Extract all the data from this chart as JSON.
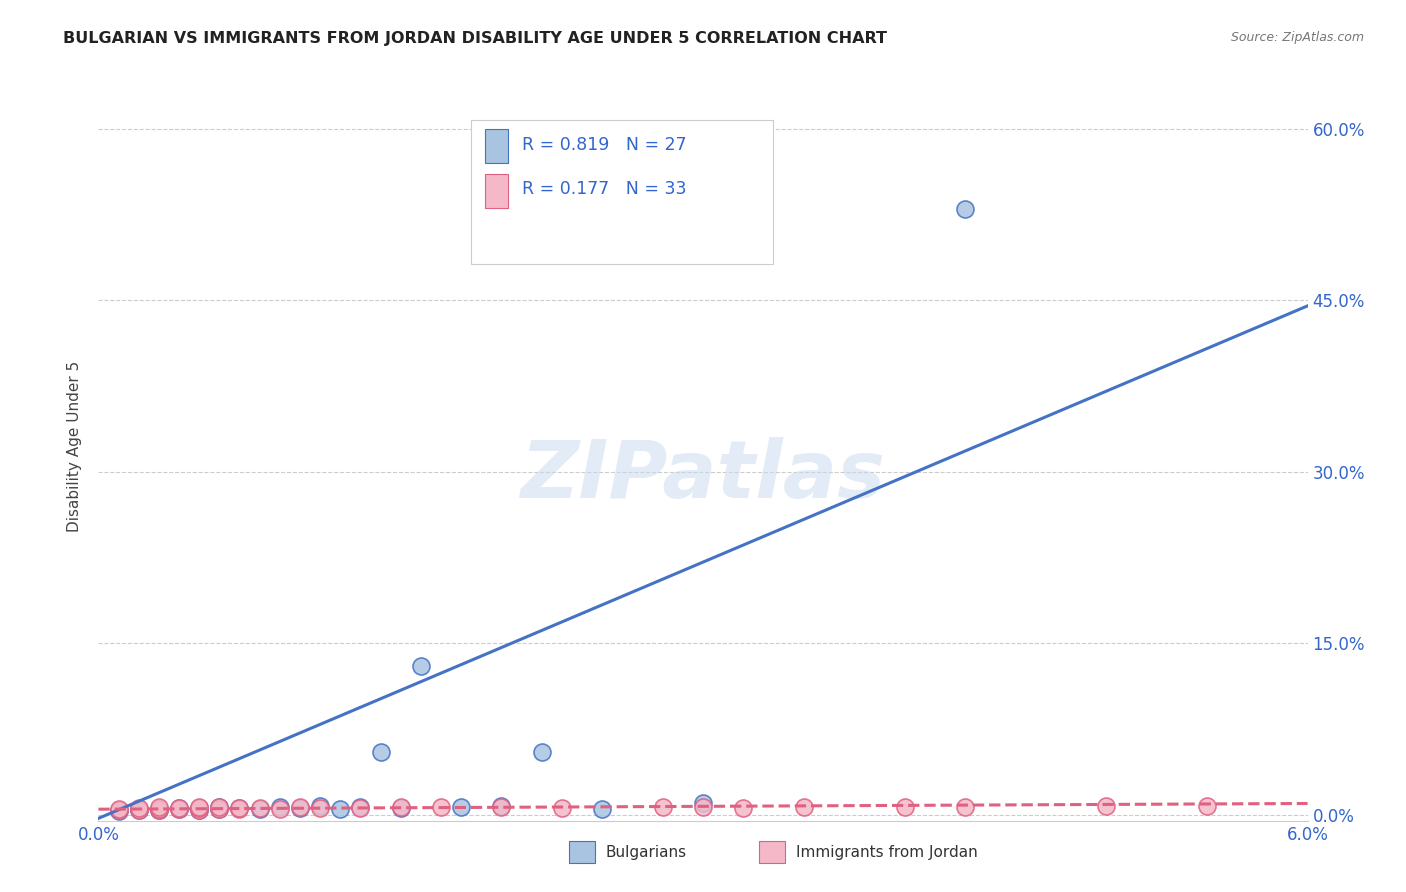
{
  "title": "BULGARIAN VS IMMIGRANTS FROM JORDAN DISABILITY AGE UNDER 5 CORRELATION CHART",
  "source": "Source: ZipAtlas.com",
  "ylabel": "Disability Age Under 5",
  "xmin": 0.0,
  "xmax": 0.06,
  "ymin": -0.005,
  "ymax": 0.65,
  "blue_color": "#a8c4e0",
  "blue_line_color": "#4472c4",
  "pink_color": "#f4b8c8",
  "pink_line_color": "#e06080",
  "blue_scatter_x": [
    0.001,
    0.002,
    0.002,
    0.003,
    0.003,
    0.004,
    0.004,
    0.005,
    0.005,
    0.006,
    0.006,
    0.007,
    0.008,
    0.009,
    0.01,
    0.011,
    0.012,
    0.013,
    0.014,
    0.015,
    0.016,
    0.018,
    0.02,
    0.022,
    0.025,
    0.043,
    0.03
  ],
  "blue_scatter_y": [
    0.003,
    0.004,
    0.005,
    0.004,
    0.005,
    0.005,
    0.006,
    0.004,
    0.006,
    0.005,
    0.007,
    0.006,
    0.005,
    0.007,
    0.006,
    0.008,
    0.005,
    0.007,
    0.055,
    0.006,
    0.13,
    0.007,
    0.008,
    0.055,
    0.005,
    0.53,
    0.01
  ],
  "pink_scatter_x": [
    0.001,
    0.001,
    0.002,
    0.002,
    0.003,
    0.003,
    0.003,
    0.004,
    0.004,
    0.005,
    0.005,
    0.005,
    0.006,
    0.006,
    0.007,
    0.007,
    0.008,
    0.009,
    0.01,
    0.011,
    0.013,
    0.015,
    0.017,
    0.02,
    0.023,
    0.028,
    0.03,
    0.032,
    0.035,
    0.04,
    0.043,
    0.05,
    0.055
  ],
  "pink_scatter_y": [
    0.004,
    0.005,
    0.004,
    0.006,
    0.004,
    0.005,
    0.007,
    0.005,
    0.006,
    0.004,
    0.006,
    0.007,
    0.005,
    0.007,
    0.005,
    0.006,
    0.006,
    0.005,
    0.007,
    0.006,
    0.006,
    0.007,
    0.007,
    0.007,
    0.006,
    0.007,
    0.007,
    0.006,
    0.007,
    0.007,
    0.007,
    0.008,
    0.008
  ],
  "blue_line_x0": 0.0,
  "blue_line_y0": -0.003,
  "blue_line_x1": 0.06,
  "blue_line_y1": 0.445,
  "pink_line_x0": 0.0,
  "pink_line_y0": 0.005,
  "pink_line_x1": 0.06,
  "pink_line_y1": 0.01,
  "background_color": "#ffffff",
  "watermark_text": "ZIPatlas",
  "legend_R1": "R = 0.819",
  "legend_N1": "N = 27",
  "legend_R2": "R = 0.177",
  "legend_N2": "N = 33",
  "legend_label1": "Bulgarians",
  "legend_label2": "Immigrants from Jordan",
  "ytick_positions": [
    0.0,
    0.15,
    0.3,
    0.45,
    0.6
  ],
  "right_ytick_labels": [
    "0.0%",
    "15.0%",
    "30.0%",
    "45.0%",
    "60.0%"
  ],
  "xtick_positions": [
    0.0,
    0.06
  ],
  "xtick_labels": [
    "0.0%",
    "6.0%"
  ]
}
